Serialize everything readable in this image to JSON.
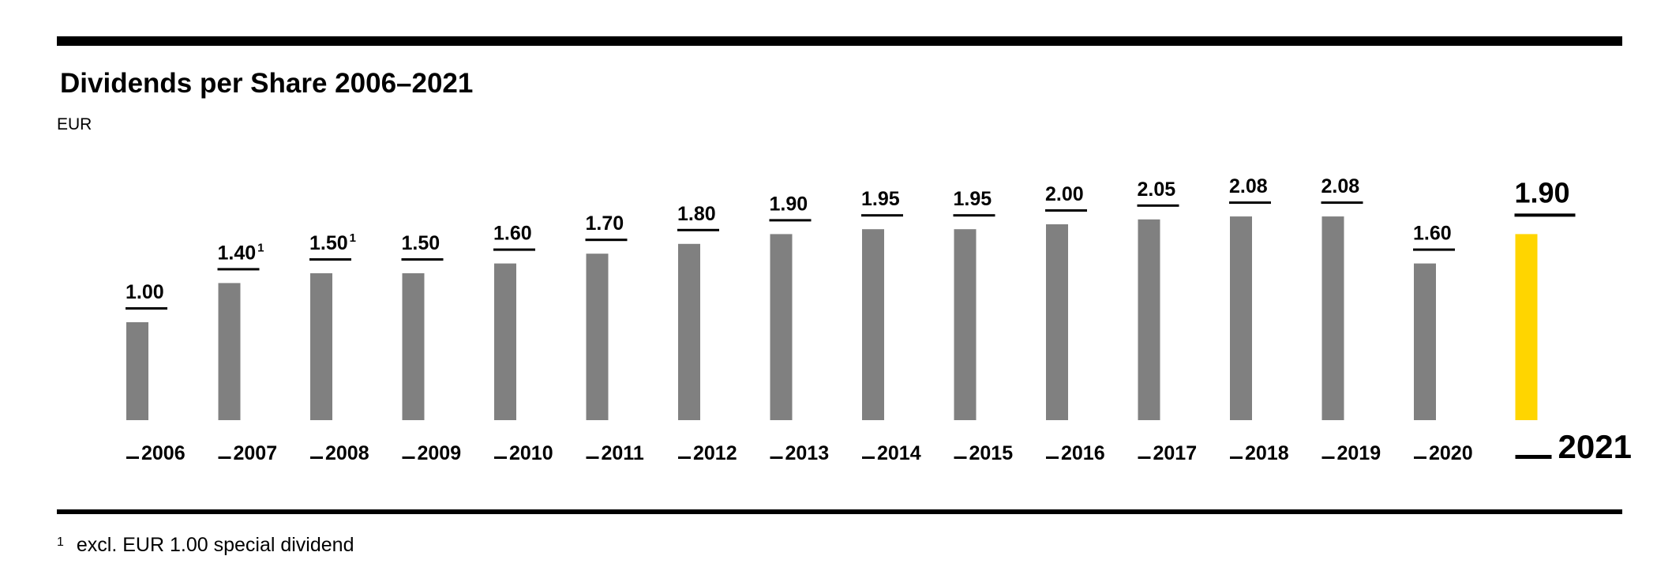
{
  "chart_data": {
    "type": "bar",
    "title": "Dividends per Share 2006–2021",
    "unit": "EUR",
    "categories": [
      "2006",
      "2007",
      "2008",
      "2009",
      "2010",
      "2011",
      "2012",
      "2013",
      "2014",
      "2015",
      "2016",
      "2017",
      "2018",
      "2019",
      "2020",
      "2021"
    ],
    "values": [
      1.0,
      1.4,
      1.5,
      1.5,
      1.6,
      1.7,
      1.8,
      1.9,
      1.95,
      1.95,
      2.0,
      2.05,
      2.08,
      2.08,
      1.6,
      1.9
    ],
    "value_labels": [
      "1.00",
      "1.40",
      "1.50",
      "1.50",
      "1.60",
      "1.70",
      "1.80",
      "1.90",
      "1.95",
      "1.95",
      "2.00",
      "2.05",
      "2.08",
      "2.08",
      "1.60",
      "1.90"
    ],
    "footnote_marks": [
      "",
      "1",
      "1",
      "",
      "",
      "",
      "",
      "",
      "",
      "",
      "",
      "",
      "",
      "",
      "",
      ""
    ],
    "highlight_index": 15,
    "ylim": [
      0,
      2.3
    ],
    "grid": false,
    "colors": {
      "bar": "#808080",
      "highlight": "#FFD500",
      "text": "#000000"
    },
    "footnote": {
      "mark": "1",
      "text": "excl. EUR 1.00 special dividend"
    }
  }
}
